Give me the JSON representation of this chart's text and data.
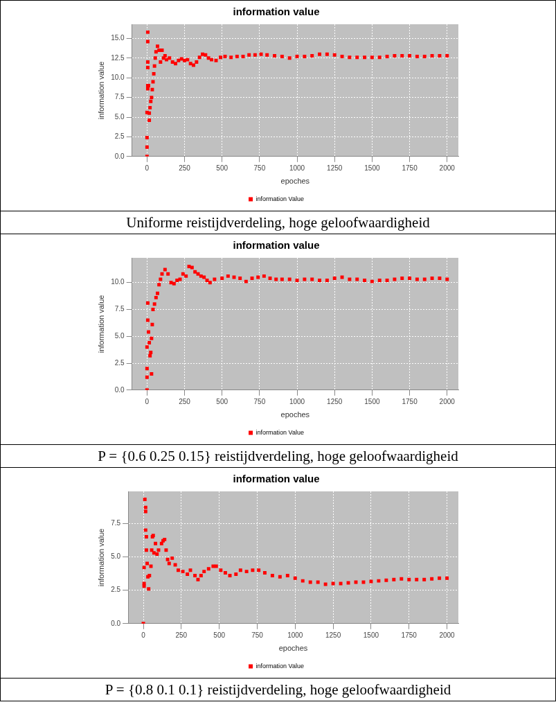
{
  "chart_data": [
    {
      "type": "scatter",
      "title": "information value",
      "xlabel": "epoches",
      "ylabel": "information value",
      "annotations": [
        "Uniforme reistijdverdeling, hoge geloofwaardigheid"
      ],
      "xlim": [
        -100,
        2075
      ],
      "ylim": [
        0,
        16.8
      ],
      "xticks": [
        0,
        250,
        500,
        750,
        1000,
        1250,
        1500,
        1750,
        2000
      ],
      "yticks": [
        {
          "value": 0,
          "label": "0.0"
        },
        {
          "value": 2.5,
          "label": "2.5"
        },
        {
          "value": 5,
          "label": "5.0"
        },
        {
          "value": 7.5,
          "label": "7.5"
        },
        {
          "value": 10,
          "label": "10.0"
        },
        {
          "value": 12.5,
          "label": "12.5"
        },
        {
          "value": 15,
          "label": "15.0"
        }
      ],
      "grid": true,
      "legend": "bottom",
      "marker": "square",
      "series": [
        {
          "name": "information Value",
          "color": "#ff0000",
          "x": [
            0,
            0,
            0,
            0,
            5,
            5,
            5,
            5,
            5,
            5,
            10,
            15,
            15,
            20,
            25,
            30,
            35,
            40,
            45,
            50,
            55,
            60,
            70,
            80,
            90,
            100,
            110,
            120,
            130,
            150,
            170,
            190,
            210,
            230,
            250,
            270,
            290,
            310,
            330,
            350,
            370,
            390,
            410,
            430,
            460,
            490,
            520,
            560,
            600,
            640,
            680,
            720,
            760,
            800,
            850,
            900,
            950,
            1000,
            1050,
            1100,
            1150,
            1200,
            1250,
            1300,
            1350,
            1400,
            1450,
            1500,
            1550,
            1600,
            1650,
            1700,
            1750,
            1800,
            1850,
            1900,
            1950,
            2000
          ],
          "values": [
            0,
            1.2,
            2.4,
            5.6,
            15.8,
            14.6,
            12,
            11.3,
            9,
            8.6,
            9,
            4.6,
            5.5,
            6.2,
            7,
            7.5,
            8.5,
            9.5,
            10.5,
            11.5,
            12.5,
            13.3,
            14,
            13.5,
            12,
            13.5,
            12.5,
            12.8,
            12.3,
            12.5,
            12,
            11.8,
            12.2,
            12.4,
            12.2,
            12.3,
            11.8,
            11.6,
            12,
            12.6,
            13,
            12.9,
            12.5,
            12.3,
            12.2,
            12.6,
            12.7,
            12.6,
            12.7,
            12.7,
            12.9,
            12.9,
            13,
            12.9,
            12.8,
            12.7,
            12.5,
            12.7,
            12.7,
            12.8,
            13,
            13,
            12.9,
            12.7,
            12.6,
            12.6,
            12.6,
            12.6,
            12.6,
            12.7,
            12.8,
            12.8,
            12.8,
            12.7,
            12.7,
            12.8,
            12.8,
            12.8
          ]
        }
      ]
    },
    {
      "type": "scatter",
      "title": "information value",
      "xlabel": "epoches",
      "ylabel": "information value",
      "annotations": [
        "P = {0.6 0.25 0.15} reistijdverdeling, hoge geloofwaardigheid"
      ],
      "xlim": [
        -100,
        2075
      ],
      "ylim": [
        0,
        12.3
      ],
      "xticks": [
        0,
        250,
        500,
        750,
        1000,
        1250,
        1500,
        1750,
        2000
      ],
      "yticks": [
        {
          "value": 0,
          "label": "0.0"
        },
        {
          "value": 2.5,
          "label": "2.5"
        },
        {
          "value": 5,
          "label": "5.0"
        },
        {
          "value": 7.5,
          "label": "7.5"
        },
        {
          "value": 10,
          "label": "10.0"
        }
      ],
      "grid": true,
      "legend": "bottom",
      "marker": "square",
      "series": [
        {
          "name": "information Value",
          "color": "#ff0000",
          "x": [
            0,
            0,
            0,
            0,
            5,
            5,
            10,
            15,
            20,
            25,
            30,
            30,
            35,
            40,
            50,
            60,
            70,
            80,
            90,
            100,
            120,
            140,
            160,
            180,
            200,
            220,
            240,
            260,
            280,
            300,
            320,
            340,
            360,
            380,
            400,
            420,
            450,
            500,
            540,
            580,
            620,
            660,
            700,
            740,
            780,
            820,
            860,
            900,
            950,
            1000,
            1050,
            1100,
            1150,
            1200,
            1250,
            1300,
            1350,
            1400,
            1450,
            1500,
            1550,
            1600,
            1650,
            1700,
            1750,
            1800,
            1850,
            1900,
            1950,
            2000
          ],
          "values": [
            0,
            1.2,
            2,
            4,
            6.5,
            8.1,
            5.4,
            4.4,
            3.2,
            3.5,
            1.5,
            4.8,
            6.1,
            7.5,
            8,
            8.6,
            9,
            9.8,
            10.3,
            10.8,
            11.2,
            10.8,
            10,
            9.9,
            10.2,
            10.3,
            10.8,
            10.6,
            11.5,
            11.4,
            11,
            10.8,
            10.6,
            10.5,
            10.2,
            10,
            10.3,
            10.4,
            10.6,
            10.5,
            10.4,
            10.1,
            10.4,
            10.5,
            10.6,
            10.4,
            10.3,
            10.3,
            10.3,
            10.2,
            10.3,
            10.3,
            10.2,
            10.2,
            10.4,
            10.5,
            10.3,
            10.3,
            10.2,
            10.1,
            10.2,
            10.2,
            10.3,
            10.4,
            10.4,
            10.3,
            10.3,
            10.4,
            10.4,
            10.3
          ]
        }
      ]
    },
    {
      "type": "scatter",
      "title": "information value",
      "xlabel": "epoches",
      "ylabel": "information value",
      "annotations": [
        "P = {0.8 0.1 0.1} reistijdverdeling, hoge geloofwaardigheid"
      ],
      "xlim": [
        -100,
        2075
      ],
      "ylim": [
        0,
        9.9
      ],
      "xticks": [
        0,
        250,
        500,
        750,
        1000,
        1250,
        1500,
        1750,
        2000
      ],
      "yticks": [
        {
          "value": 0,
          "label": "0.0"
        },
        {
          "value": 2.5,
          "label": "2.5"
        },
        {
          "value": 5,
          "label": "5.0"
        },
        {
          "value": 7.5,
          "label": "7.5"
        }
      ],
      "grid": true,
      "legend": "bottom",
      "marker": "square",
      "series": [
        {
          "name": "information Value",
          "color": "#ff0000",
          "x": [
            0,
            5,
            5,
            5,
            10,
            15,
            15,
            15,
            20,
            20,
            25,
            30,
            35,
            40,
            50,
            55,
            60,
            65,
            70,
            80,
            90,
            100,
            120,
            130,
            140,
            150,
            160,
            170,
            190,
            210,
            230,
            260,
            290,
            310,
            340,
            360,
            380,
            400,
            430,
            460,
            480,
            510,
            540,
            570,
            610,
            640,
            680,
            720,
            760,
            800,
            850,
            900,
            950,
            1000,
            1050,
            1100,
            1150,
            1200,
            1250,
            1300,
            1350,
            1400,
            1450,
            1500,
            1550,
            1600,
            1650,
            1700,
            1750,
            1800,
            1850,
            1900,
            1950,
            2000
          ],
          "values": [
            0,
            4.2,
            3,
            2.8,
            9.3,
            8.7,
            8.4,
            7,
            6.5,
            5.5,
            4.5,
            3.5,
            2.6,
            3.6,
            4.3,
            5.5,
            6.5,
            6.6,
            5.3,
            6,
            5.2,
            5.5,
            6,
            6.2,
            6.3,
            5.5,
            4.8,
            4.5,
            4.9,
            4.4,
            4,
            3.9,
            3.7,
            4,
            3.6,
            3.3,
            3.6,
            3.9,
            4.1,
            4.3,
            4.3,
            4,
            3.8,
            3.6,
            3.7,
            4,
            3.9,
            4,
            4,
            3.8,
            3.6,
            3.5,
            3.6,
            3.4,
            3.2,
            3.1,
            3.1,
            2.95,
            3,
            3,
            3.05,
            3.1,
            3.1,
            3.15,
            3.2,
            3.25,
            3.3,
            3.35,
            3.3,
            3.3,
            3.3,
            3.35,
            3.4,
            3.4
          ]
        }
      ]
    }
  ]
}
